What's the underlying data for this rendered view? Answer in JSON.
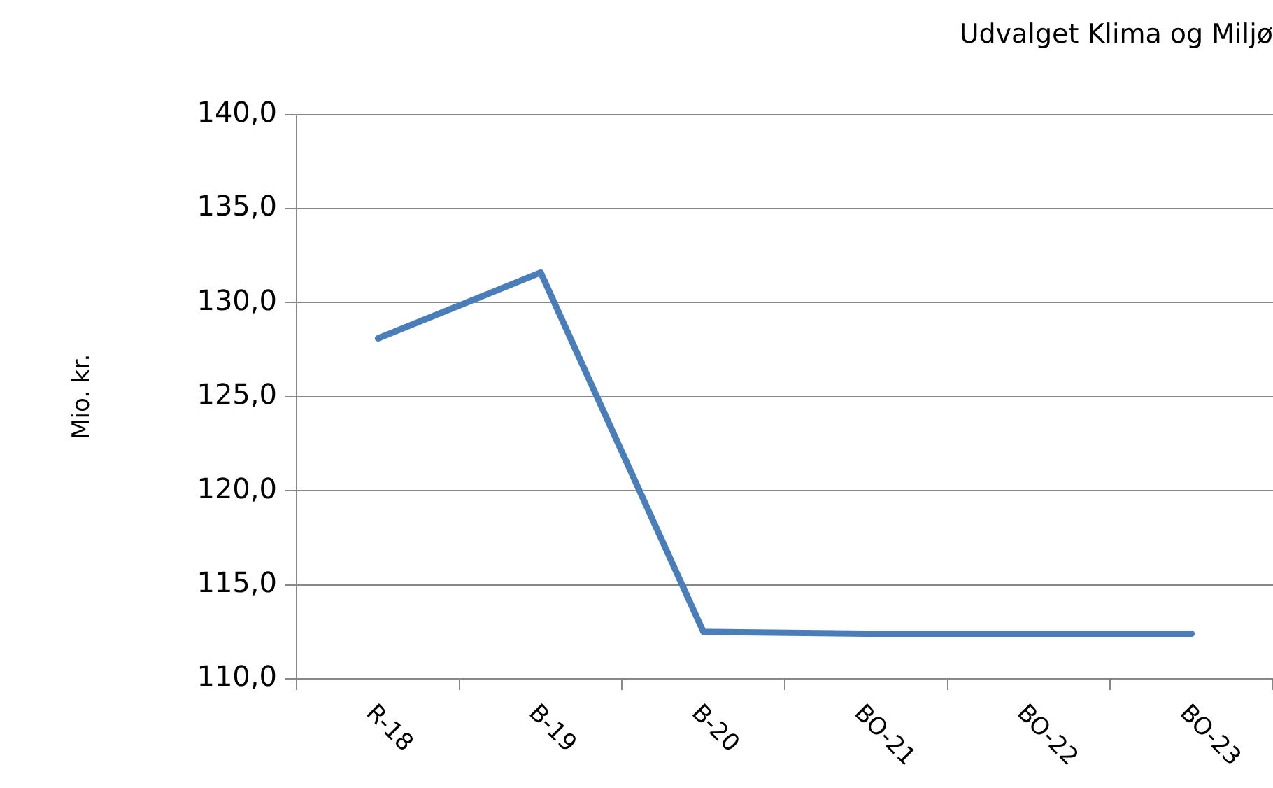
{
  "chart_data": {
    "type": "line",
    "title": "Udvalget Klima og Miljø",
    "ylabel": "Mio. kr.",
    "categories": [
      "R-18",
      "B-19",
      "B-20",
      "BO-21",
      "BO-22",
      "BO-23"
    ],
    "series": [
      {
        "color": "#4a7ebb",
        "values": [
          128.1,
          131.6,
          112.5,
          112.4,
          112.4,
          112.4
        ]
      }
    ],
    "ylim": [
      110,
      140
    ],
    "yticks": [
      {
        "value": 110,
        "label": "110,0"
      },
      {
        "value": 115,
        "label": "115,0"
      },
      {
        "value": 120,
        "label": "120,0"
      },
      {
        "value": 125,
        "label": "125,0"
      },
      {
        "value": 130,
        "label": "130,0"
      },
      {
        "value": 135,
        "label": "135,0"
      },
      {
        "value": 140,
        "label": "140,0"
      }
    ],
    "grid": "y",
    "legend": false,
    "marker": "none",
    "line_style": "solid"
  }
}
